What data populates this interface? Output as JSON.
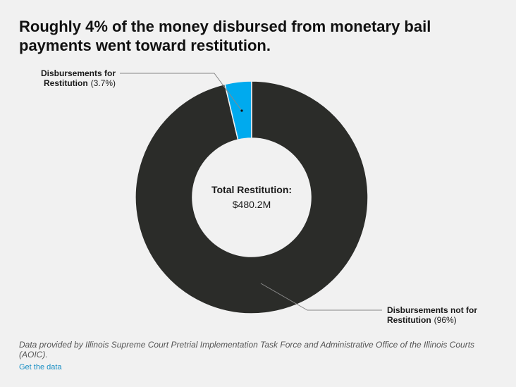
{
  "title": "Roughly 4% of the money disbursed from monetary bail payments went toward restitution.",
  "chart_data": {
    "type": "pie",
    "categories": [
      "Disbursements for Restitution",
      "Disbursements not for Restitution"
    ],
    "values": [
      3.7,
      96
    ],
    "value_labels": [
      "(3.7%)",
      "(96%)"
    ],
    "colors": [
      "#00aaee",
      "#2b2c29"
    ],
    "center_label": "Total Restitution:",
    "center_value": "$480.2M"
  },
  "labels": {
    "restitution_line1": "Disbursements for",
    "restitution_line2": "Restitution",
    "non_restitution_line1": "Disbursements not for",
    "non_restitution_line2": "Restitution"
  },
  "notes": "Data provided by Illinois Supreme Court Pretrial Implementation Task Force and Administrative Office of the Illinois Courts (AOIC).",
  "get_data_link": "Get the data"
}
